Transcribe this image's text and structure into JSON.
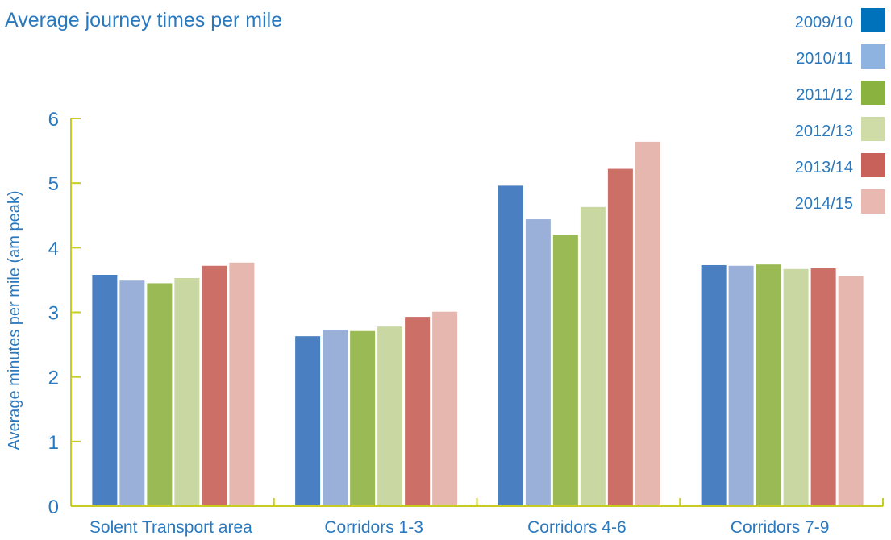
{
  "chart_data": {
    "type": "bar",
    "title": "Average journey times per mile",
    "xlabel": "",
    "ylabel": "Average minutes per mile (am peak)",
    "ylim": [
      0,
      6
    ],
    "yticks": [
      0,
      1,
      2,
      3,
      4,
      5,
      6
    ],
    "grid": false,
    "legend_position": "top-right",
    "categories": [
      "Solent Transport area",
      "Corridors 1-3",
      "Corridors 4-6",
      "Corridors 7-9"
    ],
    "series": [
      {
        "name": "2009/10",
        "color": "#4a7fc1",
        "legend_color": "#0072bc",
        "values": [
          3.58,
          2.63,
          4.96,
          3.73
        ]
      },
      {
        "name": "2010/11",
        "color": "#9bb0d9",
        "legend_color": "#8fb3e0",
        "values": [
          3.49,
          2.73,
          4.44,
          3.72
        ]
      },
      {
        "name": "2011/12",
        "color": "#9aba55",
        "legend_color": "#8ab23f",
        "values": [
          3.45,
          2.71,
          4.2,
          3.74
        ]
      },
      {
        "name": "2012/13",
        "color": "#c9d8a3",
        "legend_color": "#cfdca8",
        "values": [
          3.53,
          2.78,
          4.63,
          3.67
        ]
      },
      {
        "name": "2013/14",
        "color": "#cb6f67",
        "legend_color": "#c8615a",
        "values": [
          3.72,
          2.93,
          5.22,
          3.68
        ]
      },
      {
        "name": "2014/15",
        "color": "#e5b7ae",
        "legend_color": "#e9b9b1",
        "values": [
          3.77,
          3.01,
          5.64,
          3.56
        ]
      }
    ]
  },
  "colors": {
    "title": "#2a78bd",
    "text": "#2a78bd",
    "axis": "#c8cc22"
  }
}
